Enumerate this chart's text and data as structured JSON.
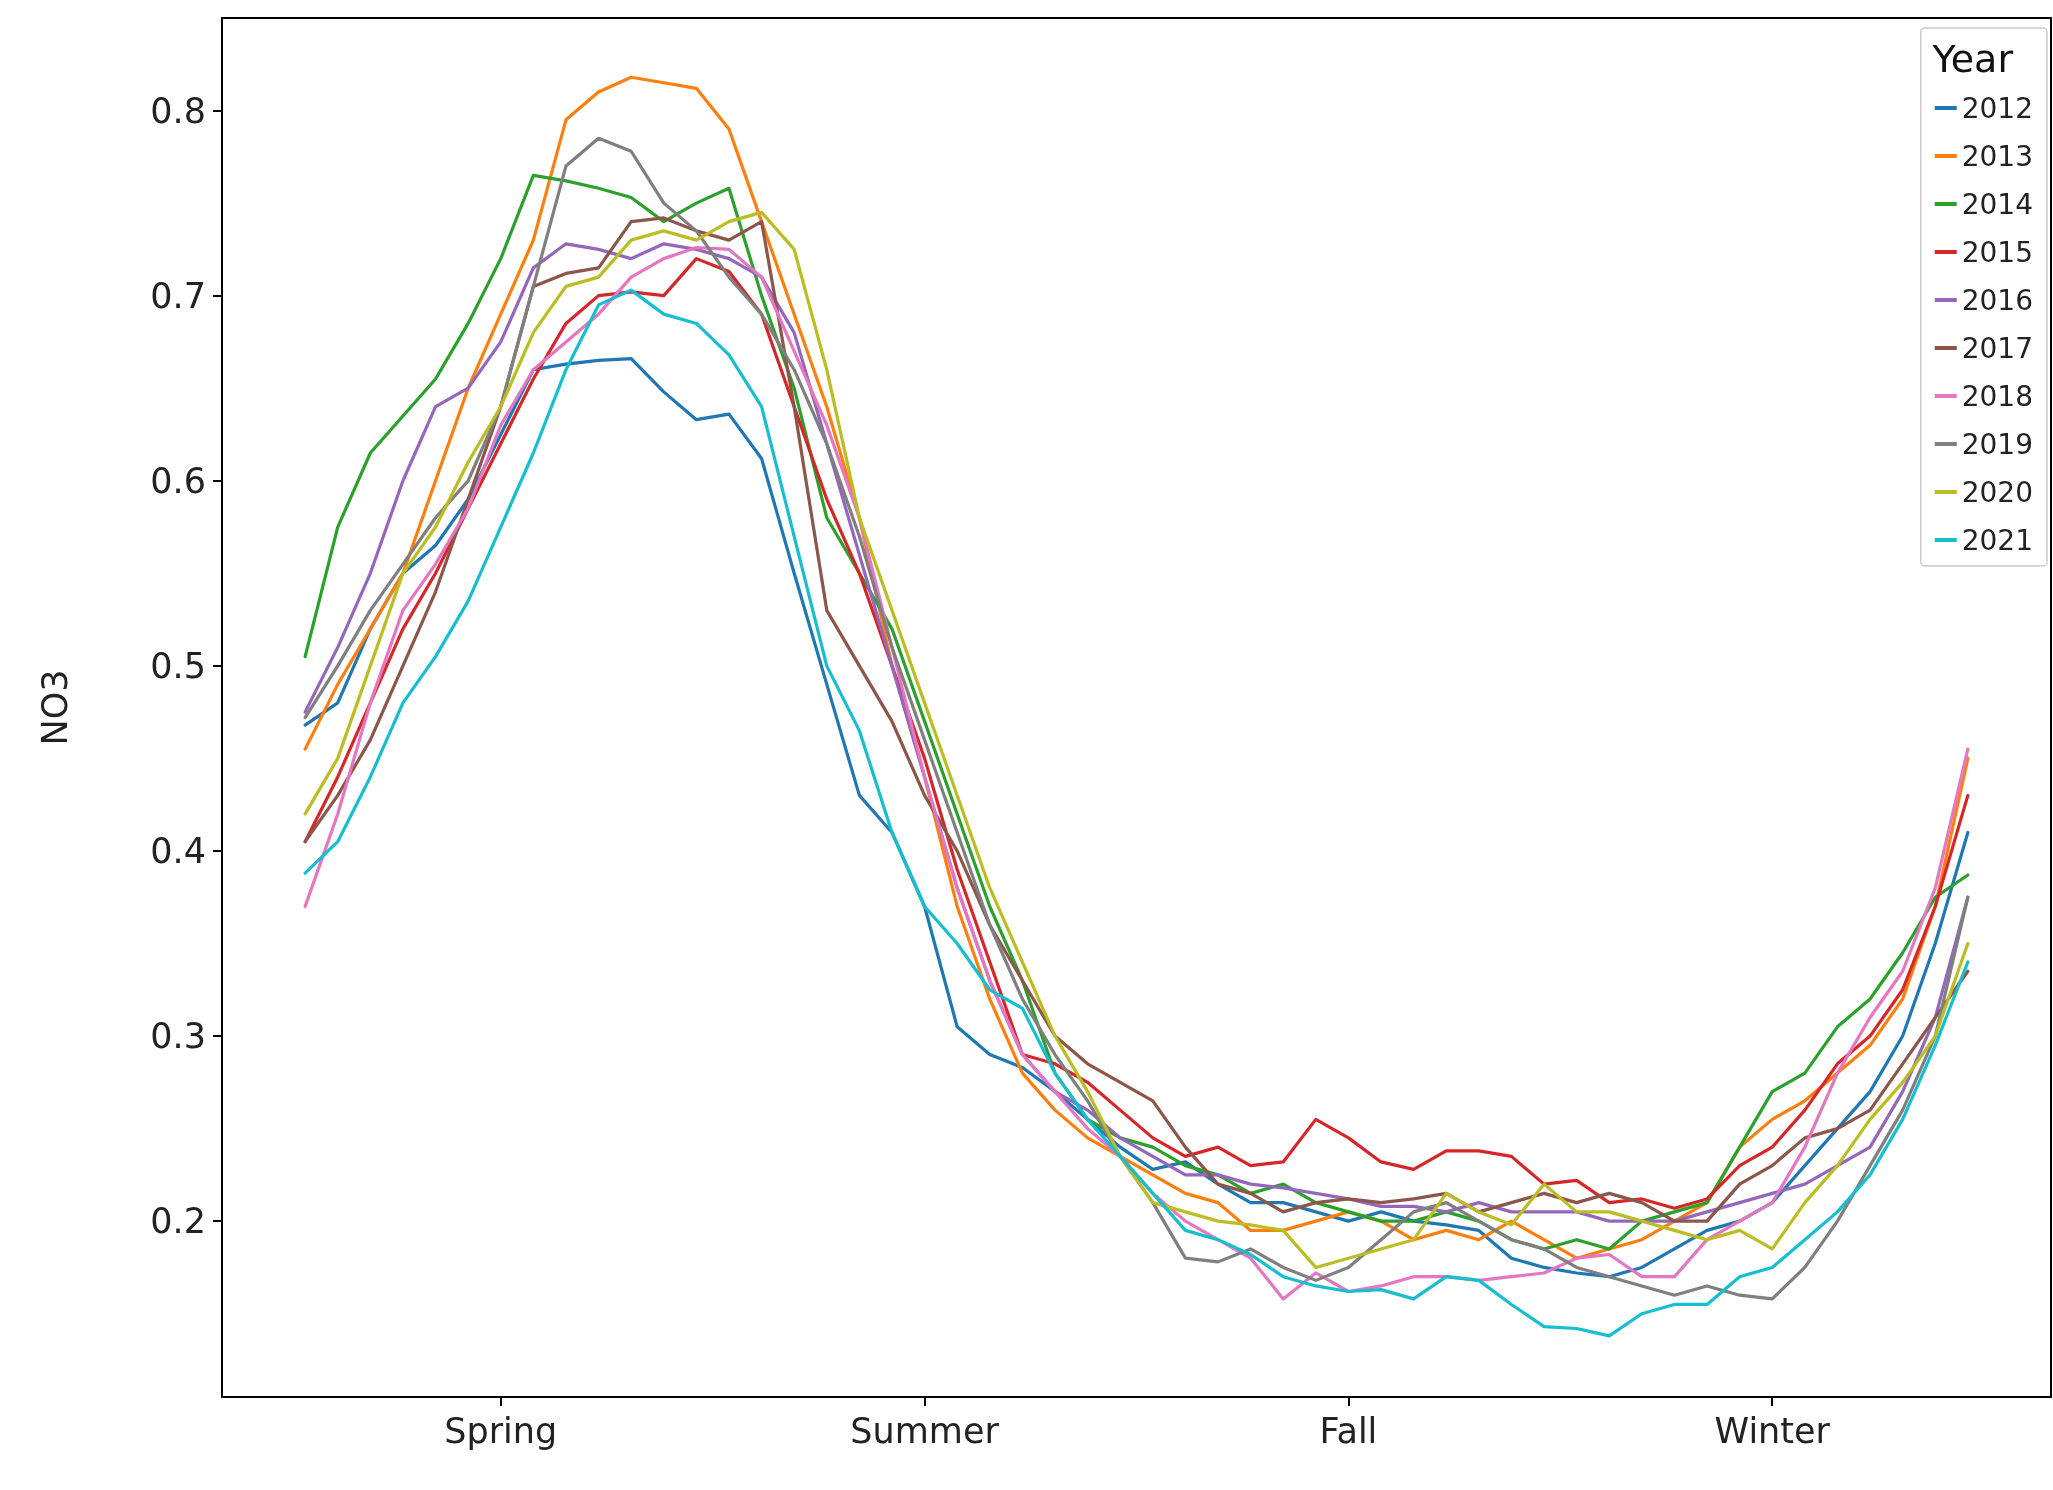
{
  "chart_data": {
    "type": "line",
    "ylabel": "NO3",
    "legend_title": "Year",
    "legend": "top right",
    "grid": false,
    "marker": "none",
    "line_style": "solid",
    "categories": [
      null,
      null,
      null,
      null,
      null,
      null,
      "Spring",
      null,
      null,
      null,
      null,
      null,
      null,
      null,
      null,
      null,
      null,
      null,
      null,
      "Summer",
      null,
      null,
      null,
      null,
      null,
      null,
      null,
      null,
      null,
      null,
      null,
      null,
      "Fall",
      null,
      null,
      null,
      null,
      null,
      null,
      null,
      null,
      null,
      null,
      null,
      null,
      "Winter",
      null,
      null,
      null,
      null,
      null,
      null
    ],
    "ylim": [
      0.105,
      0.85
    ],
    "yticks": [
      0.2,
      0.3,
      0.4,
      0.5,
      0.6,
      0.7,
      0.8
    ],
    "series": [
      {
        "name": "2012",
        "color": "#1f77b4",
        "values": [
          0.468,
          0.48,
          0.52,
          0.55,
          0.565,
          0.59,
          0.625,
          0.66,
          0.663,
          0.665,
          0.666,
          0.648,
          0.633,
          0.636,
          0.612,
          0.55,
          0.49,
          0.43,
          0.41,
          0.37,
          0.305,
          0.29,
          0.283,
          0.27,
          0.255,
          0.24,
          0.228,
          0.232,
          0.22,
          0.21,
          0.21,
          0.205,
          0.2,
          0.205,
          0.2,
          0.198,
          0.195,
          0.18,
          0.175,
          0.172,
          0.17,
          0.175,
          0.185,
          0.195,
          0.2,
          0.21,
          0.23,
          0.25,
          0.27,
          0.3,
          0.35,
          0.41
        ]
      },
      {
        "name": "2013",
        "color": "#ff7f0e",
        "values": [
          0.455,
          0.49,
          0.52,
          0.55,
          0.6,
          0.65,
          0.69,
          0.73,
          0.795,
          0.81,
          0.818,
          0.815,
          0.812,
          0.79,
          0.74,
          0.69,
          0.64,
          0.58,
          0.5,
          0.44,
          0.37,
          0.32,
          0.28,
          0.26,
          0.245,
          0.235,
          0.225,
          0.215,
          0.21,
          0.195,
          0.195,
          0.2,
          0.205,
          0.2,
          0.19,
          0.195,
          0.19,
          0.2,
          0.19,
          0.18,
          0.185,
          0.19,
          0.2,
          0.21,
          0.24,
          0.255,
          0.265,
          0.28,
          0.295,
          0.32,
          0.37,
          0.45
        ]
      },
      {
        "name": "2014",
        "color": "#2ca02c",
        "values": [
          0.505,
          0.575,
          0.615,
          0.635,
          0.655,
          0.685,
          0.72,
          0.765,
          0.762,
          0.758,
          0.753,
          0.74,
          0.75,
          0.758,
          0.7,
          0.65,
          0.58,
          0.55,
          0.52,
          0.47,
          0.42,
          0.37,
          0.33,
          0.28,
          0.255,
          0.245,
          0.24,
          0.23,
          0.225,
          0.215,
          0.22,
          0.21,
          0.205,
          0.2,
          0.2,
          0.205,
          0.2,
          0.19,
          0.185,
          0.19,
          0.185,
          0.2,
          0.205,
          0.21,
          0.24,
          0.27,
          0.28,
          0.305,
          0.32,
          0.345,
          0.375,
          0.387
        ]
      },
      {
        "name": "2015",
        "color": "#d62728",
        "values": [
          0.405,
          0.44,
          0.48,
          0.52,
          0.55,
          0.585,
          0.62,
          0.655,
          0.685,
          0.7,
          0.702,
          0.7,
          0.72,
          0.713,
          0.69,
          0.64,
          0.59,
          0.55,
          0.5,
          0.45,
          0.39,
          0.34,
          0.29,
          0.285,
          0.275,
          0.26,
          0.245,
          0.235,
          0.24,
          0.23,
          0.232,
          0.255,
          0.245,
          0.232,
          0.228,
          0.238,
          0.238,
          0.235,
          0.22,
          0.222,
          0.21,
          0.212,
          0.207,
          0.212,
          0.23,
          0.24,
          0.26,
          0.285,
          0.3,
          0.325,
          0.37,
          0.43
        ]
      },
      {
        "name": "2016",
        "color": "#9467bd",
        "values": [
          0.475,
          0.51,
          0.55,
          0.6,
          0.64,
          0.65,
          0.675,
          0.715,
          0.728,
          0.725,
          0.72,
          0.728,
          0.725,
          0.72,
          0.71,
          0.68,
          0.62,
          0.56,
          0.5,
          0.44,
          0.38,
          0.33,
          0.29,
          0.27,
          0.26,
          0.245,
          0.235,
          0.225,
          0.225,
          0.22,
          0.218,
          0.215,
          0.212,
          0.208,
          0.208,
          0.205,
          0.21,
          0.205,
          0.205,
          0.205,
          0.2,
          0.2,
          0.2,
          0.205,
          0.21,
          0.215,
          0.22,
          0.23,
          0.24,
          0.27,
          0.31,
          0.375
        ]
      },
      {
        "name": "2017",
        "color": "#8c564b",
        "values": [
          0.405,
          0.43,
          0.46,
          0.5,
          0.54,
          0.59,
          0.64,
          0.705,
          0.712,
          0.715,
          0.74,
          0.742,
          0.735,
          0.73,
          0.74,
          0.64,
          0.53,
          0.5,
          0.47,
          0.43,
          0.4,
          0.36,
          0.33,
          0.3,
          0.285,
          0.275,
          0.265,
          0.24,
          0.22,
          0.215,
          0.205,
          0.21,
          0.212,
          0.21,
          0.212,
          0.215,
          0.205,
          0.21,
          0.215,
          0.21,
          0.215,
          0.21,
          0.2,
          0.2,
          0.22,
          0.23,
          0.245,
          0.25,
          0.26,
          0.285,
          0.31,
          0.335
        ]
      },
      {
        "name": "2018",
        "color": "#e377c2",
        "values": [
          0.37,
          0.42,
          0.48,
          0.53,
          0.555,
          0.585,
          0.63,
          0.66,
          0.675,
          0.69,
          0.71,
          0.72,
          0.726,
          0.725,
          0.71,
          0.67,
          0.63,
          0.58,
          0.51,
          0.44,
          0.38,
          0.33,
          0.29,
          0.27,
          0.25,
          0.235,
          0.215,
          0.2,
          0.19,
          0.18,
          0.158,
          0.172,
          0.162,
          0.165,
          0.17,
          0.17,
          0.168,
          0.17,
          0.172,
          0.18,
          0.182,
          0.17,
          0.17,
          0.19,
          0.2,
          0.21,
          0.24,
          0.28,
          0.31,
          0.335,
          0.38,
          0.455
        ]
      },
      {
        "name": "2019",
        "color": "#7f7f7f",
        "values": [
          0.472,
          0.5,
          0.53,
          0.555,
          0.58,
          0.6,
          0.64,
          0.705,
          0.77,
          0.785,
          0.778,
          0.75,
          0.735,
          0.71,
          0.69,
          0.66,
          0.62,
          0.57,
          0.51,
          0.46,
          0.41,
          0.36,
          0.32,
          0.29,
          0.265,
          0.235,
          0.21,
          0.18,
          0.178,
          0.185,
          0.175,
          0.168,
          0.175,
          0.19,
          0.205,
          0.21,
          0.2,
          0.19,
          0.185,
          0.175,
          0.17,
          0.165,
          0.16,
          0.165,
          0.16,
          0.158,
          0.175,
          0.2,
          0.23,
          0.26,
          0.3,
          0.375
        ]
      },
      {
        "name": "2020",
        "color": "#bcbd22",
        "values": [
          0.42,
          0.45,
          0.5,
          0.55,
          0.575,
          0.61,
          0.64,
          0.68,
          0.705,
          0.71,
          0.73,
          0.735,
          0.73,
          0.74,
          0.745,
          0.725,
          0.66,
          0.58,
          0.53,
          0.48,
          0.43,
          0.38,
          0.34,
          0.3,
          0.27,
          0.235,
          0.21,
          0.205,
          0.2,
          0.198,
          0.195,
          0.175,
          0.18,
          0.185,
          0.19,
          0.215,
          0.205,
          0.198,
          0.22,
          0.205,
          0.205,
          0.2,
          0.195,
          0.19,
          0.195,
          0.185,
          0.21,
          0.23,
          0.255,
          0.275,
          0.3,
          0.35
        ]
      },
      {
        "name": "2021",
        "color": "#17becf",
        "values": [
          0.388,
          0.405,
          0.44,
          0.48,
          0.505,
          0.535,
          0.575,
          0.615,
          0.66,
          0.695,
          0.703,
          0.69,
          0.685,
          0.668,
          0.64,
          0.57,
          0.5,
          0.465,
          0.41,
          0.37,
          0.35,
          0.325,
          0.315,
          0.28,
          0.255,
          0.235,
          0.215,
          0.195,
          0.19,
          0.182,
          0.17,
          0.165,
          0.162,
          0.163,
          0.158,
          0.17,
          0.168,
          0.155,
          0.143,
          0.142,
          0.138,
          0.15,
          0.155,
          0.155,
          0.17,
          0.175,
          0.19,
          0.205,
          0.225,
          0.255,
          0.295,
          0.34
        ]
      }
    ]
  }
}
